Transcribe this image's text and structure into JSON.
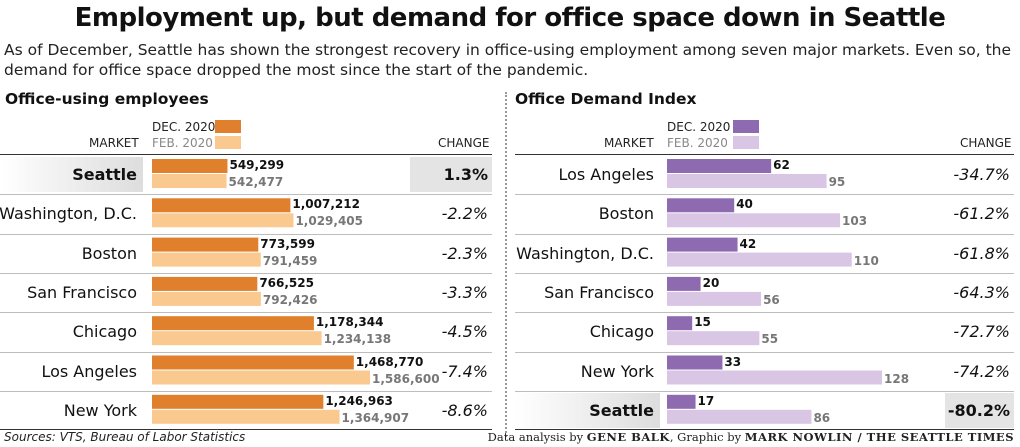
{
  "title": "Employment up, but demand for office space down in Seattle",
  "subtitle": "As of December, Seattle has shown the strongest recovery in office-using employment among seven major markets. Even so, the demand for office space dropped the most since the start of the pandemic.",
  "source": "Sources: VTS, Bureau of Labor Statistics",
  "credit": {
    "prefix": "Data analysis by ",
    "analyst": "GENE BALK",
    "mid": ", Graphic by ",
    "artist": "MARK NOWLIN",
    "outlet": " / THE SEATTLE TIMES"
  },
  "colors": {
    "emp_dec": "#e0802c",
    "emp_feb": "#f9c98f",
    "idx_dec": "#8e6bb0",
    "idx_feb": "#d9c6e5"
  },
  "chart_data": [
    {
      "type": "bar",
      "title": "Office-using employees",
      "market_header": "MARKET",
      "change_header": "CHANGE",
      "legend": [
        "DEC. 2020",
        "FEB. 2020"
      ],
      "series": [
        {
          "name": "DEC. 2020",
          "values": [
            549299,
            1007212,
            773599,
            766525,
            1178344,
            1468770,
            1246963
          ]
        },
        {
          "name": "FEB. 2020",
          "values": [
            542477,
            1029405,
            791459,
            792426,
            1234138,
            1586600,
            1364907
          ]
        }
      ],
      "categories": [
        "Seattle",
        "Washington, D.C.",
        "Boston",
        "San Francisco",
        "Chicago",
        "Los Angeles",
        "New York"
      ],
      "dec_labels": [
        "549,299",
        "1,007,212",
        "773,599",
        "766,525",
        "1,178,344",
        "1,468,770",
        "1,246,963"
      ],
      "feb_labels": [
        "542,477",
        "1,029,405",
        "791,459",
        "792,426",
        "1,234,138",
        "1,586,600",
        "1,364,907"
      ],
      "changes": [
        "1.3%",
        "-2.2%",
        "-2.3%",
        "-3.3%",
        "-4.5%",
        "-7.4%",
        "-8.6%"
      ],
      "highlight_row": 0
    },
    {
      "type": "bar",
      "title": "Office Demand Index",
      "market_header": "MARKET",
      "change_header": "CHANGE",
      "legend": [
        "DEC. 2020",
        "FEB. 2020"
      ],
      "series": [
        {
          "name": "DEC. 2020",
          "values": [
            62,
            40,
            42,
            20,
            15,
            33,
            17
          ]
        },
        {
          "name": "FEB. 2020",
          "values": [
            95,
            103,
            110,
            56,
            55,
            128,
            86
          ]
        }
      ],
      "categories": [
        "Los Angeles",
        "Boston",
        "Washington, D.C.",
        "San Francisco",
        "Chicago",
        "New York",
        "Seattle"
      ],
      "dec_labels": [
        "62",
        "40",
        "42",
        "20",
        "15",
        "33",
        "17"
      ],
      "feb_labels": [
        "95",
        "103",
        "110",
        "56",
        "55",
        "128",
        "86"
      ],
      "changes": [
        "-34.7%",
        "-61.2%",
        "-61.8%",
        "-64.3%",
        "-72.7%",
        "-74.2%",
        "-80.2%"
      ],
      "highlight_row": 6
    }
  ]
}
